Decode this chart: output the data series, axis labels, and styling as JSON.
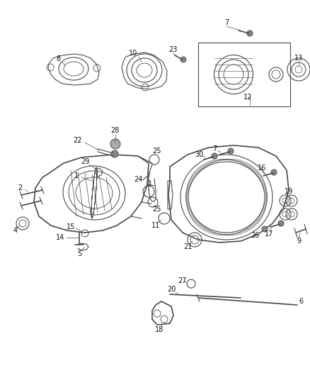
{
  "bg_color": "#ffffff",
  "line_color": "#4a4a4a",
  "label_color": "#111111",
  "fig_width": 4.38,
  "fig_height": 5.33,
  "dpi": 100,
  "font_size_labels": 7.0
}
